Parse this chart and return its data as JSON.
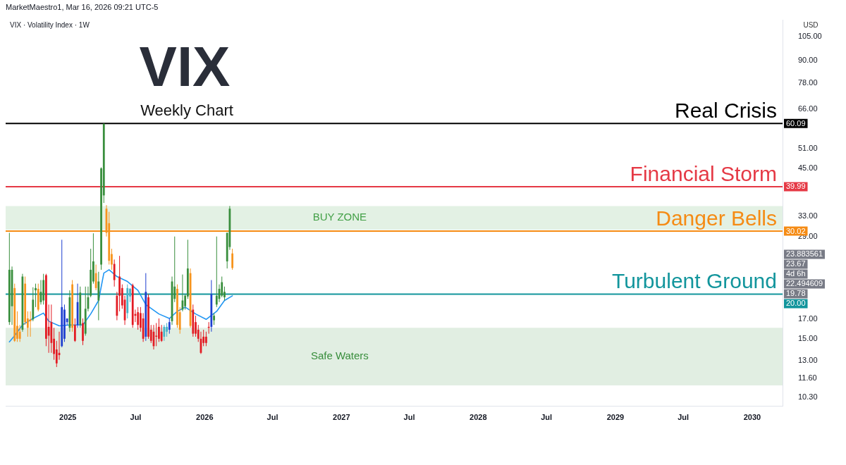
{
  "chart_data": {
    "type": "candlestick",
    "title": "VIX",
    "subtitle": "Weekly Chart",
    "ylabel": "USD",
    "x": [
      "2024-07-29",
      "2024-08-05",
      "2024-08-12",
      "2024-08-19",
      "2024-08-26",
      "2024-09-02",
      "2024-09-09",
      "2024-09-16",
      "2024-09-23",
      "2024-09-30",
      "2024-10-07",
      "2024-10-14",
      "2024-10-21",
      "2024-10-28",
      "2024-11-04",
      "2024-11-11",
      "2024-11-18",
      "2024-11-25",
      "2024-12-02",
      "2024-12-09",
      "2024-12-16",
      "2024-12-23",
      "2024-12-30",
      "2025-01-06",
      "2025-01-13",
      "2025-01-20",
      "2025-01-27",
      "2025-02-03",
      "2025-02-10",
      "2025-02-17",
      "2025-02-24",
      "2025-03-03",
      "2025-03-10",
      "2025-03-17",
      "2025-03-24",
      "2025-03-31",
      "2025-04-07",
      "2025-04-14",
      "2025-04-21",
      "2025-04-28",
      "2025-05-05",
      "2025-05-12",
      "2025-05-19",
      "2025-05-26",
      "2025-06-02",
      "2025-06-09",
      "2025-06-16",
      "2025-06-23",
      "2025-06-30",
      "2025-07-07",
      "2025-07-14",
      "2025-07-21",
      "2025-07-28",
      "2025-08-04",
      "2025-08-11",
      "2025-08-18",
      "2025-08-25",
      "2025-09-01",
      "2025-09-08",
      "2025-09-15",
      "2025-09-22",
      "2025-09-29",
      "2025-10-06",
      "2025-10-13",
      "2025-10-20",
      "2025-10-27",
      "2025-11-03",
      "2025-11-10",
      "2025-11-17",
      "2025-11-24",
      "2025-12-01",
      "2025-12-08",
      "2025-12-15",
      "2025-12-22",
      "2025-12-29",
      "2026-01-05",
      "2026-01-12",
      "2026-01-19",
      "2026-01-26",
      "2026-02-02",
      "2026-02-09",
      "2026-02-16",
      "2026-02-23",
      "2026-03-02",
      "2026-03-09",
      "2026-03-16"
    ],
    "ohlc": [
      [
        16.7,
        29.7,
        16.4,
        23.4
      ],
      [
        18.5,
        23.9,
        16.4,
        23.4
      ],
      [
        20.8,
        21.4,
        14.7,
        14.8
      ],
      [
        16.3,
        17.9,
        14.7,
        15.0
      ],
      [
        15.7,
        16.4,
        14.7,
        15.0
      ],
      [
        15.9,
        22.8,
        15.7,
        22.4
      ],
      [
        21.4,
        22.4,
        16.4,
        16.7
      ],
      [
        17.1,
        17.9,
        15.2,
        16.1
      ],
      [
        17.0,
        17.9,
        15.2,
        16.8
      ],
      [
        17.0,
        20.9,
        16.8,
        19.3
      ],
      [
        20.5,
        21.4,
        18.4,
        20.8
      ],
      [
        20.7,
        21.4,
        17.9,
        18.1
      ],
      [
        19.0,
        21.9,
        18.7,
        20.3
      ],
      [
        19.2,
        22.8,
        18.7,
        21.9
      ],
      [
        22.6,
        22.8,
        14.3,
        15.0
      ],
      [
        16.2,
        18.7,
        13.7,
        15.3
      ],
      [
        16.7,
        18.7,
        13.7,
        14.6
      ],
      [
        15.0,
        16.1,
        13.1,
        13.6
      ],
      [
        14.0,
        14.8,
        12.5,
        12.8
      ],
      [
        13.7,
        15.7,
        13.1,
        13.5
      ],
      [
        14.3,
        28.4,
        14.2,
        18.4
      ],
      [
        15.0,
        18.7,
        14.7,
        18.1
      ],
      [
        16.7,
        17.1,
        16.4,
        17.1
      ],
      [
        16.1,
        20.5,
        15.7,
        19.6
      ],
      [
        21.3,
        21.9,
        15.7,
        16.1
      ],
      [
        16.4,
        17.1,
        14.7,
        14.8
      ],
      [
        16.4,
        21.4,
        16.1,
        19.0
      ],
      [
        16.4,
        21.0,
        16.1,
        20.2
      ],
      [
        16.6,
        17.1,
        14.4,
        14.8
      ],
      [
        15.5,
        21.0,
        15.3,
        18.2
      ],
      [
        18.2,
        21.0,
        17.9,
        19.6
      ],
      [
        19.8,
        26.8,
        19.6,
        23.4
      ],
      [
        21.7,
        29.6,
        21.4,
        24.7
      ],
      [
        22.9,
        24.2,
        20.5,
        20.8
      ],
      [
        19.2,
        23.1,
        16.9,
        21.7
      ],
      [
        24.2,
        45.3,
        23.4,
        45.0
      ],
      [
        37.8,
        60.09,
        36.0,
        60.0
      ],
      [
        34.7,
        35.5,
        29.0,
        29.7
      ],
      [
        31.6,
        34.0,
        24.2,
        24.8
      ],
      [
        25.9,
        26.8,
        23.4,
        24.2
      ],
      [
        24.3,
        25.0,
        21.0,
        21.9
      ],
      [
        19.8,
        20.3,
        16.9,
        17.4
      ],
      [
        22.4,
        25.6,
        17.9,
        19.8
      ],
      [
        20.8,
        21.3,
        18.2,
        18.6
      ],
      [
        19.3,
        19.8,
        16.4,
        16.9
      ],
      [
        17.7,
        21.3,
        17.1,
        20.8
      ],
      [
        19.7,
        20.8,
        19.0,
        20.7
      ],
      [
        21.2,
        21.4,
        16.1,
        16.4
      ],
      [
        17.6,
        18.1,
        16.7,
        17.4
      ],
      [
        17.8,
        18.4,
        15.9,
        16.4
      ],
      [
        17.7,
        18.4,
        15.7,
        16.1
      ],
      [
        17.1,
        17.7,
        14.7,
        15.0
      ],
      [
        15.2,
        22.9,
        14.8,
        20.3
      ],
      [
        19.6,
        20.0,
        15.0,
        15.2
      ],
      [
        15.9,
        16.4,
        14.6,
        14.8
      ],
      [
        15.7,
        16.4,
        14.0,
        14.3
      ],
      [
        15.3,
        16.6,
        14.3,
        15.2
      ],
      [
        16.2,
        17.1,
        14.7,
        15.0
      ],
      [
        15.7,
        16.4,
        14.7,
        14.8
      ],
      [
        15.2,
        16.4,
        14.8,
        16.2
      ],
      [
        15.7,
        16.6,
        15.2,
        16.2
      ],
      [
        15.9,
        17.1,
        15.5,
        16.7
      ],
      [
        16.8,
        22.4,
        16.4,
        21.7
      ],
      [
        19.4,
        29.0,
        19.0,
        21.0
      ],
      [
        20.7,
        21.3,
        16.1,
        16.4
      ],
      [
        17.8,
        18.4,
        15.5,
        15.9
      ],
      [
        18.1,
        22.7,
        17.9,
        19.2
      ],
      [
        18.5,
        20.0,
        18.1,
        19.8
      ],
      [
        19.7,
        28.4,
        19.4,
        23.6
      ],
      [
        22.9,
        23.6,
        16.1,
        16.3
      ],
      [
        18.1,
        18.7,
        15.2,
        15.5
      ],
      [
        16.7,
        17.4,
        15.2,
        15.5
      ],
      [
        15.9,
        16.4,
        14.7,
        15.0
      ],
      [
        15.0,
        15.7,
        13.6,
        13.7
      ],
      [
        15.2,
        15.9,
        14.3,
        14.6
      ],
      [
        15.2,
        15.7,
        14.3,
        14.6
      ],
      [
        16.2,
        16.7,
        15.5,
        16.1
      ],
      [
        16.2,
        21.9,
        15.7,
        20.0
      ],
      [
        16.9,
        17.7,
        16.4,
        17.4
      ],
      [
        18.7,
        29.0,
        18.4,
        19.8
      ],
      [
        19.4,
        21.3,
        19.0,
        20.7
      ],
      [
        19.8,
        22.4,
        19.6,
        21.6
      ],
      [
        19.6,
        21.0,
        19.2,
        20.3
      ],
      [
        24.7,
        29.7,
        23.6,
        29.7
      ],
      [
        27.1,
        35.3,
        26.6,
        34.7
      ],
      [
        26.0,
        26.8,
        23.4,
        23.67
      ]
    ],
    "colors": [
      "#388e3c",
      "#388e3c",
      "#f7941d",
      "#f7941d",
      "#f7941d",
      "#388e3c",
      "#f7941d",
      "#f7941d",
      "#f7941d",
      "#388e3c",
      "#388e3c",
      "#f7941d",
      "#388e3c",
      "#388e3c",
      "#e31b23",
      "#e31b23",
      "#e31b23",
      "#e31b23",
      "#e31b23",
      "#e31b23",
      "#1e3fd0",
      "#1e3fd0",
      "#1e3fd0",
      "#388e3c",
      "#f7941d",
      "#e31b23",
      "#1e3fd0",
      "#388e3c",
      "#e31b23",
      "#388e3c",
      "#388e3c",
      "#388e3c",
      "#388e3c",
      "#f7941d",
      "#388e3c",
      "#388e3c",
      "#388e3c",
      "#f7941d",
      "#f7941d",
      "#f7941d",
      "#e31b23",
      "#e31b23",
      "#e31b23",
      "#e31b23",
      "#e31b23",
      "#45b4c9",
      "#45b4c9",
      "#e31b23",
      "#e31b23",
      "#e31b23",
      "#e31b23",
      "#e31b23",
      "#1e3fd0",
      "#e31b23",
      "#e31b23",
      "#e31b23",
      "#e31b23",
      "#e31b23",
      "#e31b23",
      "#45b4c9",
      "#45b4c9",
      "#1e3fd0",
      "#388e3c",
      "#388e3c",
      "#f7941d",
      "#f7941d",
      "#388e3c",
      "#388e3c",
      "#388e3c",
      "#f7941d",
      "#e31b23",
      "#e31b23",
      "#e31b23",
      "#e31b23",
      "#e31b23",
      "#e31b23",
      "#e31b23",
      "#1e3fd0",
      "#388e3c",
      "#388e3c",
      "#388e3c",
      "#388e3c",
      "#388e3c",
      "#388e3c",
      "#388e3c",
      "#f7941d"
    ],
    "series": [
      {
        "type": "line",
        "color": "#2196f3",
        "x": [
          "2024-07-29",
          "2024-08-12",
          "2024-09-02",
          "2024-09-30",
          "2024-10-28",
          "2024-11-11",
          "2024-12-09",
          "2025-01-06",
          "2025-02-10",
          "2025-03-03",
          "2025-03-24",
          "2025-04-07",
          "2025-04-21",
          "2025-05-12",
          "2025-06-09",
          "2025-07-07",
          "2025-07-28",
          "2025-09-01",
          "2025-09-29",
          "2025-10-20",
          "2025-11-10",
          "2025-12-08",
          "2026-01-05",
          "2026-02-02",
          "2026-02-23",
          "2026-03-16"
        ],
        "values": [
          14.7,
          15.3,
          16.4,
          17.1,
          17.7,
          16.8,
          16.3,
          16.4,
          16.4,
          17.6,
          19.2,
          22.9,
          23.4,
          22.4,
          21.7,
          20.5,
          18.7,
          17.6,
          17.1,
          17.9,
          18.4,
          17.6,
          17.0,
          17.9,
          19.2,
          19.78
        ]
      }
    ],
    "xlim": [
      "2024-07-19",
      "2030-03-23"
    ],
    "xticks": [
      {
        "value": "2025-01-01",
        "label": "2025"
      },
      {
        "value": "2025-07-01",
        "label": "Jul"
      },
      {
        "value": "2026-01-01",
        "label": "2026"
      },
      {
        "value": "2026-07-01",
        "label": "Jul"
      },
      {
        "value": "2027-01-01",
        "label": "2027"
      },
      {
        "value": "2027-07-01",
        "label": "Jul"
      },
      {
        "value": "2028-01-01",
        "label": "2028"
      },
      {
        "value": "2028-07-01",
        "label": "Jul"
      },
      {
        "value": "2029-01-01",
        "label": "2029"
      },
      {
        "value": "2029-07-01",
        "label": "Jul"
      },
      {
        "value": "2030-01-01",
        "label": "2030"
      }
    ],
    "ylim": [
      9.7,
      117
    ],
    "yticks": [
      {
        "value": 10.3,
        "label": "10.30"
      },
      {
        "value": 11.6,
        "label": "11.60"
      },
      {
        "value": 13,
        "label": "13.00"
      },
      {
        "value": 15,
        "label": "15.00"
      },
      {
        "value": 17,
        "label": "17.00"
      },
      {
        "value": 29,
        "label": "29.00"
      },
      {
        "value": 33,
        "label": "33.00"
      },
      {
        "value": 45,
        "label": "45.00"
      },
      {
        "value": 51,
        "label": "51.00"
      },
      {
        "value": 66,
        "label": "66.00"
      },
      {
        "value": 78,
        "label": "78.00"
      },
      {
        "value": 90,
        "label": "90.00"
      },
      {
        "value": 105,
        "label": "105.00"
      }
    ],
    "log": true,
    "grid": false,
    "legend": false,
    "ref_lines": [
      {
        "axis": "y",
        "value": 60.09,
        "label": "60.09",
        "color": "#000000"
      },
      {
        "axis": "y",
        "value": 39.99,
        "label": "39.99",
        "color": "#e53945"
      },
      {
        "axis": "y",
        "value": 30.02,
        "label": "30.02",
        "color": "#f58b14"
      },
      {
        "axis": "y",
        "value": 20.0,
        "label": "20.00",
        "color": "#12959c"
      }
    ],
    "bands": [
      {
        "axis": "y",
        "from": 30.3,
        "to": 35.3,
        "label": "BUY ZONE",
        "color": "#43a047"
      },
      {
        "axis": "y",
        "from": 11.1,
        "to": 16.1,
        "label": "Safe Waters",
        "color": "#388e3c"
      }
    ],
    "annotations": [
      "MarketMaestro1, Mar 16, 2026 09:21 UTC-5",
      "VIX · Volatility Index · 1W",
      "23.883561",
      "23.67",
      "4d 6h",
      "22.494609",
      "19.78",
      {
        "text": "Real Crisis",
        "y": 60.09
      },
      {
        "text": "Financial Storm",
        "y": 39.99
      },
      {
        "text": "Danger Bells",
        "y": 30.02
      },
      {
        "text": "Turbulent Ground",
        "y": 20.0
      }
    ]
  }
}
